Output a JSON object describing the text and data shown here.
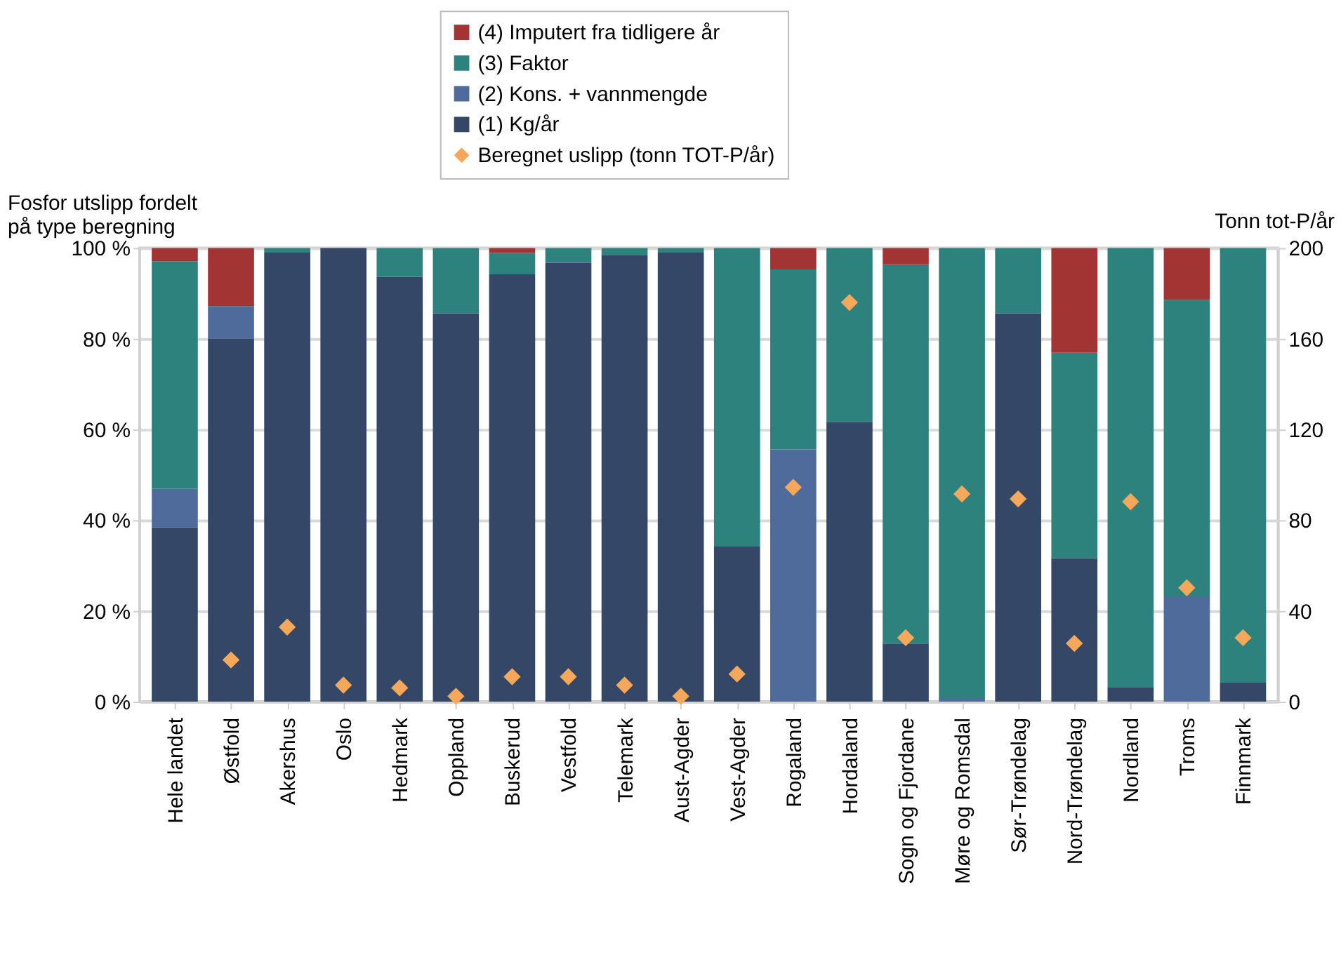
{
  "chart_data": {
    "type": "bar",
    "stacked": true,
    "ylabel": "Fosfor utslipp fordelt\npå type beregning",
    "y2label": "Tonn tot-P/år",
    "categories": [
      "Hele landet",
      "Østfold",
      "Akershus",
      "Oslo",
      "Hedmark",
      "Oppland",
      "Buskerud",
      "Vestfold",
      "Telemark",
      "Aust-Agder",
      "Vest-Agder",
      "Rogaland",
      "Hordaland",
      "Sogn og Fjordane",
      "Møre og Romsdal",
      "Sør-Trøndelag",
      "Nord-Trøndelag",
      "Nordland",
      "Troms",
      "Finnmark"
    ],
    "series": [
      {
        "name": "(1) Kg/år",
        "color": "#344766",
        "values": [
          38.4,
          80.1,
          99.0,
          100,
          93.6,
          85.6,
          94.2,
          96.7,
          98.5,
          99.0,
          34.2,
          null,
          61.7,
          12.8,
          null,
          85.6,
          31.6,
          3.1,
          null,
          4.2
        ]
      },
      {
        "name": "(2) Kons. + vannmengde",
        "color": "#4e6b9c",
        "values": [
          8.5,
          7.1,
          null,
          null,
          null,
          null,
          null,
          0.3,
          null,
          null,
          null,
          55.6,
          null,
          null,
          0.8,
          null,
          null,
          null,
          23.2,
          null
        ]
      },
      {
        "name": "(3) Faktor",
        "color": "#2e827e",
        "values": [
          50.2,
          null,
          1.0,
          null,
          6.4,
          14.4,
          4.7,
          3.0,
          1.5,
          1.0,
          65.8,
          39.7,
          38.3,
          83.6,
          99.2,
          14.4,
          45.3,
          96.9,
          65.4,
          95.8
        ]
      },
      {
        "name": "(4) Imputert fra tidligere år",
        "color": "#a33434",
        "values": [
          2.9,
          12.8,
          null,
          null,
          null,
          null,
          1.1,
          null,
          null,
          null,
          null,
          4.7,
          null,
          3.6,
          null,
          null,
          23.1,
          null,
          11.4,
          null
        ]
      },
      {
        "name": "Beregnet uslipp (tonn TOT-P/år)",
        "color": "#f5a85a",
        "type": "scatter",
        "axis": "y2",
        "marker": "diamond",
        "values": [
          null,
          18.4,
          32.9,
          7.3,
          6.1,
          2.4,
          11.0,
          11.0,
          7.3,
          2.4,
          12.2,
          94.5,
          176,
          28.2,
          91.6,
          89.4,
          25.7,
          88.2,
          50.2,
          28.2
        ]
      }
    ],
    "ylim": [
      0,
      100
    ],
    "yticks": [
      {
        "value": 0,
        "label": "0 %"
      },
      {
        "value": 20,
        "label": "20 %"
      },
      {
        "value": 40,
        "label": "40 %"
      },
      {
        "value": 60,
        "label": "60 %"
      },
      {
        "value": 80,
        "label": "80 %"
      },
      {
        "value": 100,
        "label": "100 %"
      }
    ],
    "y2lim": [
      0,
      200
    ],
    "y2ticks": [
      0,
      40,
      80,
      120,
      160,
      200
    ],
    "grid": "y",
    "legend": "top"
  }
}
